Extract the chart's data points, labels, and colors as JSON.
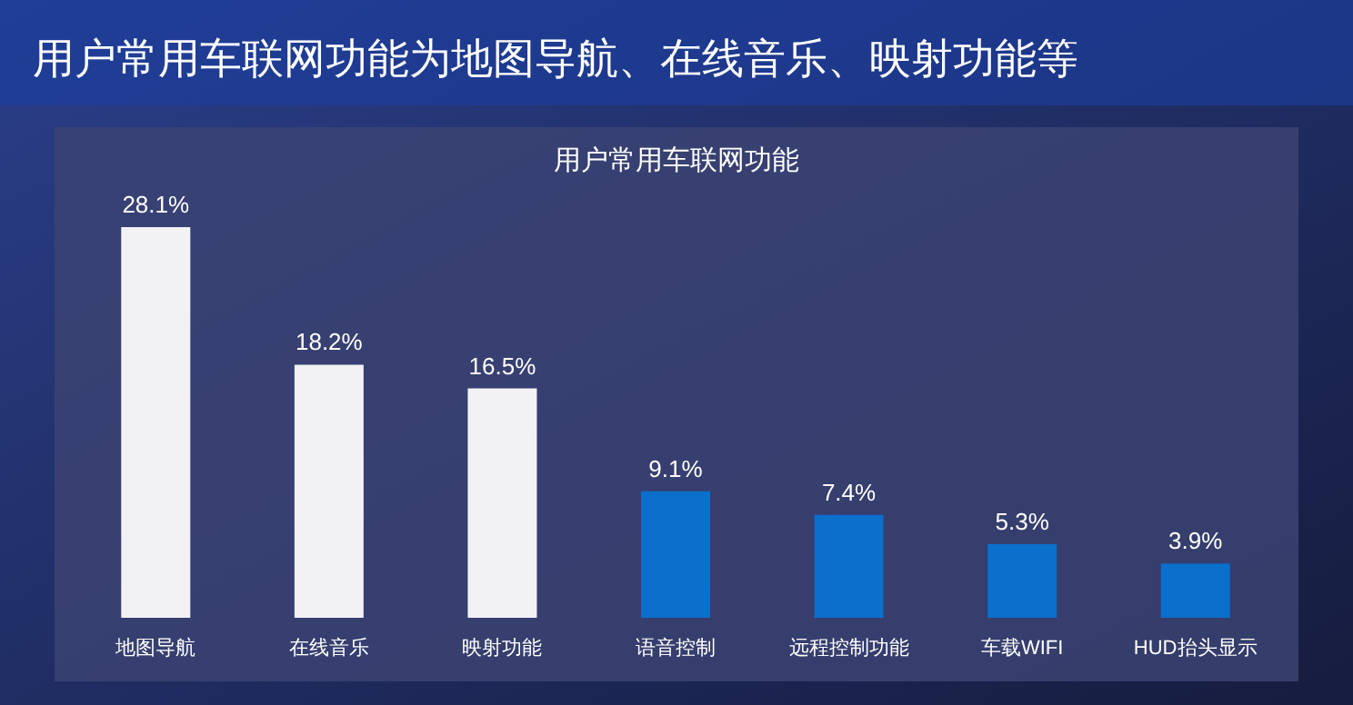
{
  "chart_data": {
    "type": "bar",
    "title": "用户常用车联网功能为地图导航、在线音乐、映射功能等",
    "subtitle": "用户常用车联网功能",
    "categories": [
      "地图导航",
      "在线音乐",
      "映射功能",
      "语音控制",
      "远程控制功能",
      "车载WIFI",
      "HUD抬头显示"
    ],
    "values": [
      28.1,
      18.2,
      16.5,
      9.1,
      7.4,
      5.3,
      3.9
    ],
    "colors": [
      "#f2f2f4",
      "#f2f2f4",
      "#f2f2f4",
      "#0b6fcc",
      "#0b6fcc",
      "#0b6fcc",
      "#0b6fcc"
    ],
    "value_labels": [
      "28.1%",
      "18.2%",
      "16.5%",
      "9.1%",
      "7.4%",
      "5.3%",
      "3.9%"
    ]
  }
}
